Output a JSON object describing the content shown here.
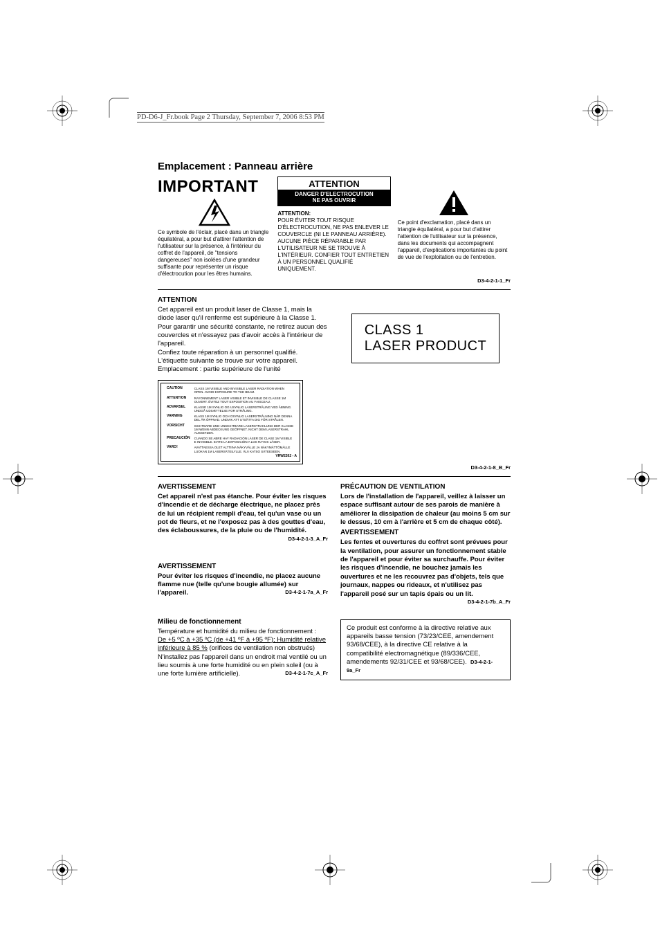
{
  "doc_header": "PD-D6-J_Fr.book  Page 2  Thursday, September 7, 2006  8:53 PM",
  "section_title": "Emplacement : Panneau arrière",
  "important": "IMPORTANT",
  "att_box": {
    "title": "ATTENTION",
    "l1": "DANGER D'ELECTROCUTION",
    "l2": "NE PAS OUVRIR"
  },
  "col1_text": "Ce symbole de l'éclair, placé dans un triangle équilatéral, a pour but d'attirer l'attention de l'utilisateur sur la présence, à l'intérieur du coffret de l'appareil, de \"tensions dangereuses\" non isolées d'une grandeur suffisante pour représenter un risque d'électrocution pour les êtres humains.",
  "col2_head": "ATTENTION:",
  "col2_text": "POUR ÉVITER TOUT RISQUE D'ÉLECTROCUTION, NE PAS ENLEVER LE COUVERCLE (NI LE PANNEAU ARRIÈRE). AUCUNE PIÈCE RÉPARABLE PAR L'UTILISATEUR NE SE TROUVE À L'INTÉRIEUR.  CONFIER TOUT ENTRETIEN À UN PERSONNEL QUALIFIÉ UNIQUEMENT.",
  "col3_text": "Ce point d'exclamation, placé dans un triangle équilatéral, a pour but d'attirer l'attention de l'utilisateur sur la présence, dans les documents qui accompagnent l'appareil, d'explications importantes du point de vue de l'exploitation ou de l'entretien.",
  "ref1": "D3-4-2-1-1_Fr",
  "laser": {
    "head": "ATTENTION",
    "p1": "Cet appareil est un produit laser de Classe 1, mais la diode laser qu'il renferme est supérieure à la Classe 1. Pour garantir une sécurité constante, ne  retirez aucun des couvercles et n'essayez pas d'avoir accès à l'intérieur de l'appareil.",
    "p2": "Confiez toute réparation à un personnel qualifié.",
    "p3": "L'étiquette suivante se trouve sur votre appareil.",
    "p4": "Emplacement : partie supérieure de l'unité",
    "box_l1": "CLASS 1",
    "box_l2": "LASER PRODUCT",
    "ref": "D3-4-2-1-8_B_Fr"
  },
  "warnlabel": {
    "rows": [
      [
        "CAUTION",
        "CLASS 1M VISIBLE AND INVISIBLE LASER RADIATION WHEN OPEN. AVOID EXPOSURE TO THE BEAM."
      ],
      [
        "ATTENTION",
        "RAYONNEMENT LASER VISIBLE ET INVISIBLE DE CLASSE 1M OUVERT. ÉVITEZ TOUT EXPOSITION AU FAISCEAU."
      ],
      [
        "ADVARSEL",
        "KLASSE 1M SYNLIG OG USYNLIG LASERSTRÅLING VED ÅBNING. UNDGÅ UDSÆTTELSE FOR STRÅLING."
      ],
      [
        "VARNING",
        "KLASS 1M SYNLIG OCH OSYNLIG LASERSTRÅLNING NÄR DENNA DEL ÄR ÖPPNAD. UNDVIK ATT UTSÄTTA DIG FÖR STRÅLEN."
      ],
      [
        "VORSICHT",
        "SICHTBARE UND UNSICHTBARE LASERSTRAHLUNG DER KLASSE 1M WENN ABDECKUNG GEÖFFNET. NICHT DEM LASERSTRAHL AUSSETZEN."
      ],
      [
        "PRECAUCIÓN",
        "CUANDO SE ABRE HAY RADIACIÓN LÁSER DE CLASE 1M VISIBLE E INVISIBLE.   EVITE   LA EXPOSICIÓN A LOS RAYOS LÁSER."
      ],
      [
        "VARO!",
        "AVATTAESSA OLET ALTTIINA NÄKYVÄLLE JA NÄKYMÄTTÖMÄLLE LUOKAN 1M LASERSÄTEILYLLE. ÄLÄ KATSO SÄTEESEEN."
      ]
    ],
    "code": "VRW2262 - A"
  },
  "av1": {
    "head": "AVERTISSEMENT",
    "body": "Cet appareil n'est pas étanche. Pour éviter les risques d'incendie et de décharge électrique, ne placez près de lui un récipient rempli d'eau, tel qu'un vase ou un pot de fleurs, et ne l'exposez pas à des gouttes d'eau, des éclaboussures, de la pluie ou de l'humidité.",
    "ref": "D3-4-2-1-3_A_Fr"
  },
  "av2": {
    "head": "AVERTISSEMENT",
    "body": "Pour éviter les risques d'incendie, ne placez aucune flamme nue (telle qu'une bougie allumée) sur l'appareil.",
    "ref": "D3-4-2-1-7a_A_Fr"
  },
  "milieu": {
    "head": "Milieu de fonctionnement",
    "l1": "Température et humidité du milieu de fonctionnement :",
    "l2": "De +5 ºC à +35 ºC (de +41 ºF à +95 ºF); Humidité relative inférieure à 85 %",
    "l3": " (orifices de ventilation non obstrués) N'installez pas l'appareil dans un endroit mal ventilé ou un lieu soumis à une forte humidité ou en plein soleil (ou à une forte lumière artificielle).",
    "ref": "D3-4-2-1-7c_A_Fr"
  },
  "vent": {
    "head": "PRÉCAUTION DE VENTILATION",
    "body": "Lors de l'installation de l'appareil, veillez à laisser un espace suffisant autour de ses parois de manière à améliorer la dissipation de chaleur (au moins 5 cm sur le dessus, 10 cm à l'arrière et 5 cm de chaque côté).",
    "head2": "AVERTISSEMENT",
    "body2": "Les fentes et ouvertures du coffret sont prévues pour la ventilation, pour assurer un fonctionnement stable de l'appareil et pour éviter sa surchauffe. Pour éviter les risques d'incendie, ne bouchez jamais les ouvertures et ne les recouvrez pas d'objets, tels que journaux, nappes ou rideaux, et n'utilisez pas l'appareil posé sur un tapis épais ou un lit.",
    "ref": "D3-4-2-1-7b_A_Fr"
  },
  "ce": {
    "body": "Ce produit est conforme à la directive relative aux appareils basse tension (73/23/CEE, amendement 93/68/CEE), à la directive CE relative à la compatibilité electromagnétique (89/336/CEE, amendements 92/31/CEE et 93/68/CEE).",
    "ref": "D3-4-2-1-9a_Fr"
  },
  "colors": {
    "text": "#000000",
    "bg": "#ffffff",
    "header_gray": "#444444"
  }
}
